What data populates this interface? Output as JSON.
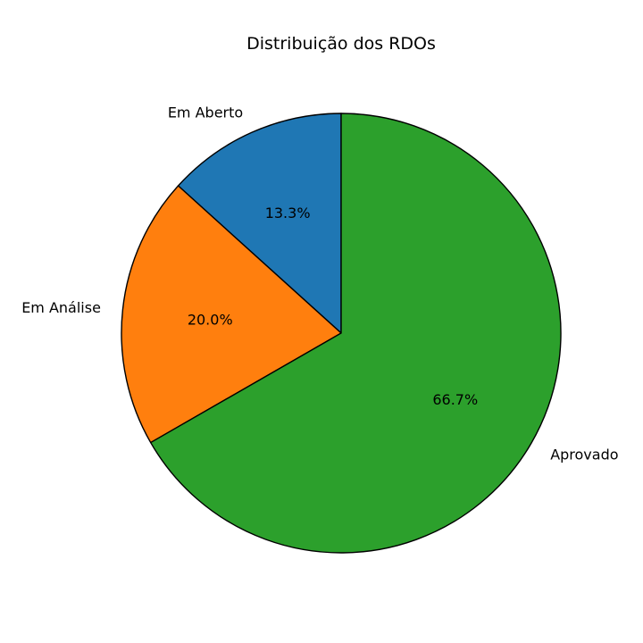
{
  "chart_data": {
    "type": "pie",
    "title": "Distribuição dos RDOs",
    "slices": [
      {
        "label": "Em Aberto",
        "value": 13.3,
        "pct_label": "13.3%",
        "color": "#1f77b4"
      },
      {
        "label": "Em Análise",
        "value": 20.0,
        "pct_label": "20.0%",
        "color": "#ff7f0e"
      },
      {
        "label": "Aprovado",
        "value": 66.7,
        "pct_label": "66.7%",
        "color": "#2ca02c"
      }
    ],
    "start_angle_deg": 90,
    "direction": "counterclockwise"
  }
}
